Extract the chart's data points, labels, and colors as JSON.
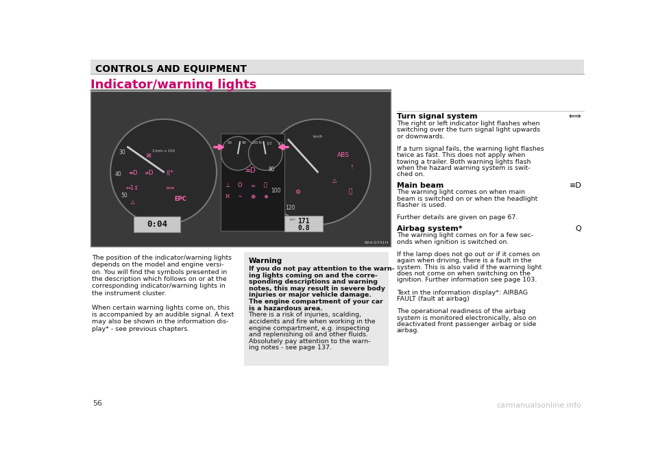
{
  "page_width": 9.6,
  "page_height": 6.73,
  "bg_color": "#ffffff",
  "header_bg": "#e0e0e0",
  "header_text": "CONTROLS AND EQUIPMENT",
  "header_text_color": "#000000",
  "header_font_size": 10,
  "section_title": "Indicator/warning lights",
  "section_title_color": "#cc0066",
  "section_title_font_size": 13,
  "page_number": "56",
  "watermark": "carmanualsonline.info",
  "left_col_text": [
    "The position of the indicator/warning lights",
    "depends on the model and engine versi-",
    "on. You will find the symbols presented in",
    "the description which follows on or at the",
    "corresponding indicator/warning lights in",
    "the instrument cluster.",
    "",
    "When certain warning lights come on, this",
    "is accompanied by an audible signal. A text",
    "may also be shown in the information dis-",
    "play* - see previous chapters."
  ],
  "warning_box_bg": "#e8e8e8",
  "warning_title": "Warning",
  "warning_text_bold": [
    "If you do not pay attention to the warn-",
    "ing lights coming on and the corre-",
    "sponding descriptions and warning",
    "notes, this may result in severe body",
    "injuries or major vehicle damage.",
    "The engine compartment of your car",
    "is a hazardous area."
  ],
  "warning_text_normal": [
    "There is a risk of injuries, scalding,",
    "accidents and fire when working in the",
    "engine compartment, e.g. inspecting",
    "and replenishing oil and other fluids.",
    "Absolutely pay attention to the warn-",
    "ing notes - see page 137."
  ],
  "right_col_sections": [
    {
      "title": "Turn signal system",
      "symbol": "⇐⇒",
      "body": [
        "The right or left indicator light flashes when",
        "switching over the turn signal light upwards",
        "or downwards.",
        "",
        "If a turn signal fails, the warning light flashes",
        "twice as fast. This does not apply when",
        "towing a trailer. Both warning lights flash",
        "when the hazard warning system is swit-",
        "ched on."
      ]
    },
    {
      "title": "Main beam",
      "symbol": "≡D",
      "body": [
        "The warning light comes on when main",
        "beam is switched on or when the headlight",
        "flasher is used.",
        "",
        "Further details are given on page 67."
      ]
    },
    {
      "title": "Airbag system*",
      "symbol": "Q",
      "body": [
        "The warning light comes on for a few sec-",
        "onds when ignition is switched on.",
        "",
        "If the lamp does not go out or if it comes on",
        "again when driving, there is a fault in the",
        "system. This is also valid if the warning light",
        "does not come on when switching on the",
        "ignition. Further information see page 103.",
        "",
        "Text in the information display*: AIRBAG",
        "FAULT (fault at airbag)",
        "",
        "The operational readiness of the airbag",
        "system is monitored electronically, also on",
        "deactivated front passenger airbag or side",
        "airbag."
      ]
    }
  ],
  "image_border_color": "#888888",
  "dash_bg": "#3a3a3a",
  "gauge_bg": "#2a2a2a",
  "pink": "#ff69b4",
  "needle_color": "#cccccc",
  "lcd_bg": "#c8c8c8"
}
